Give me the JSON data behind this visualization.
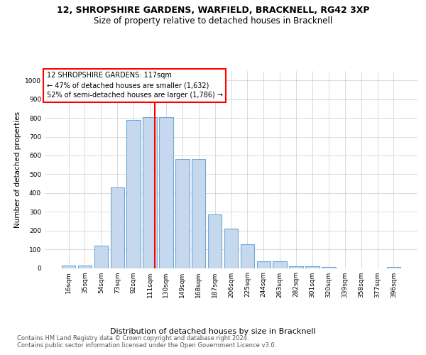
{
  "title1": "12, SHROPSHIRE GARDENS, WARFIELD, BRACKNELL, RG42 3XP",
  "title2": "Size of property relative to detached houses in Bracknell",
  "xlabel": "Distribution of detached houses by size in Bracknell",
  "ylabel": "Number of detached properties",
  "footer1": "Contains HM Land Registry data © Crown copyright and database right 2024.",
  "footer2": "Contains public sector information licensed under the Open Government Licence v3.0.",
  "annotation_line1": "12 SHROPSHIRE GARDENS: 117sqm",
  "annotation_line2": "← 47% of detached houses are smaller (1,632)",
  "annotation_line3": "52% of semi-detached houses are larger (1,786) →",
  "bar_labels": [
    "16sqm",
    "35sqm",
    "54sqm",
    "73sqm",
    "92sqm",
    "111sqm",
    "130sqm",
    "149sqm",
    "168sqm",
    "187sqm",
    "206sqm",
    "225sqm",
    "244sqm",
    "263sqm",
    "282sqm",
    "301sqm",
    "320sqm",
    "339sqm",
    "358sqm",
    "377sqm",
    "396sqm"
  ],
  "bar_values": [
    15,
    15,
    120,
    430,
    790,
    805,
    805,
    580,
    580,
    285,
    210,
    125,
    35,
    35,
    10,
    8,
    5,
    0,
    0,
    0,
    7
  ],
  "bar_color": "#c5d8ed",
  "bar_edge_color": "#6fa8d8",
  "marker_color": "red",
  "ylim": [
    0,
    1050
  ],
  "yticks": [
    0,
    100,
    200,
    300,
    400,
    500,
    600,
    700,
    800,
    900,
    1000
  ],
  "background_color": "#ffffff",
  "grid_color": "#cccccc",
  "title1_fontsize": 9,
  "title2_fontsize": 8.5,
  "xlabel_fontsize": 8,
  "ylabel_fontsize": 7.5,
  "tick_fontsize": 6.5,
  "footer_fontsize": 6,
  "ann_fontsize": 7
}
